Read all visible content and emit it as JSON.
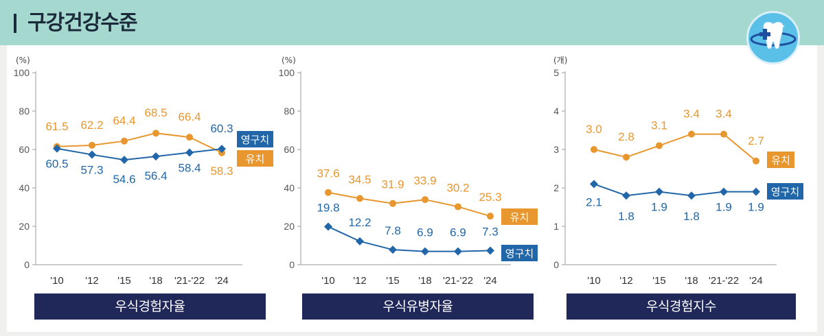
{
  "header": {
    "title": "구강건강수준"
  },
  "logo": {
    "icon": "tooth-cross-icon"
  },
  "colors": {
    "child": "#e8962e",
    "adult": "#2166a8",
    "caption_bg": "#1f2859",
    "header_bg": "#a5d9cf"
  },
  "chart_data": [
    {
      "type": "line",
      "title": "우식경험자율",
      "unit": "(%)",
      "yticks": [
        "0",
        "20",
        "40",
        "60",
        "80",
        "100"
      ],
      "ylim": [
        0,
        100
      ],
      "categories": [
        "'10",
        "'12",
        "'15",
        "'18",
        "'21-'22",
        "'24"
      ],
      "series": [
        {
          "name": "유치",
          "values": [
            61.5,
            62.2,
            64.4,
            68.5,
            66.4,
            58.3
          ],
          "labels": [
            "61.5",
            "62.2",
            "64.4",
            "68.5",
            "66.4",
            "58.3"
          ]
        },
        {
          "name": "영구치",
          "values": [
            60.5,
            57.3,
            54.6,
            56.4,
            58.4,
            60.3
          ],
          "labels": [
            "60.5",
            "57.3",
            "54.6",
            "56.4",
            "58.4",
            "60.3"
          ]
        }
      ]
    },
    {
      "type": "line",
      "title": "우식유병자율",
      "unit": "(%)",
      "yticks": [
        "0",
        "20",
        "40",
        "60",
        "80",
        "100"
      ],
      "ylim": [
        0,
        100
      ],
      "categories": [
        "'10",
        "'12",
        "'15",
        "'18",
        "'21-'22",
        "'24"
      ],
      "series": [
        {
          "name": "유치",
          "values": [
            37.6,
            34.5,
            31.9,
            33.9,
            30.2,
            25.3
          ],
          "labels": [
            "37.6",
            "34.5",
            "31.9",
            "33.9",
            "30.2",
            "25.3"
          ]
        },
        {
          "name": "영구치",
          "values": [
            19.8,
            12.2,
            7.8,
            6.9,
            6.9,
            7.3
          ],
          "labels": [
            "19.8",
            "12.2",
            "7.8",
            "6.9",
            "6.9",
            "7.3"
          ]
        }
      ]
    },
    {
      "type": "line",
      "title": "우식경험지수",
      "unit": "(개)",
      "yticks": [
        "0",
        "1",
        "2",
        "3",
        "4",
        "5"
      ],
      "ylim": [
        0,
        5
      ],
      "categories": [
        "'10",
        "'12",
        "'15",
        "'18",
        "'21-'22",
        "'24"
      ],
      "series": [
        {
          "name": "유치",
          "values": [
            3.0,
            2.8,
            3.1,
            3.4,
            3.4,
            2.7
          ],
          "labels": [
            "3.0",
            "2.8",
            "3.1",
            "3.4",
            "3.4",
            "2.7"
          ]
        },
        {
          "name": "영구치",
          "values": [
            2.1,
            1.8,
            1.9,
            1.8,
            1.9,
            1.9
          ],
          "labels": [
            "2.1",
            "1.8",
            "1.9",
            "1.8",
            "1.9",
            "1.9"
          ]
        }
      ]
    }
  ]
}
